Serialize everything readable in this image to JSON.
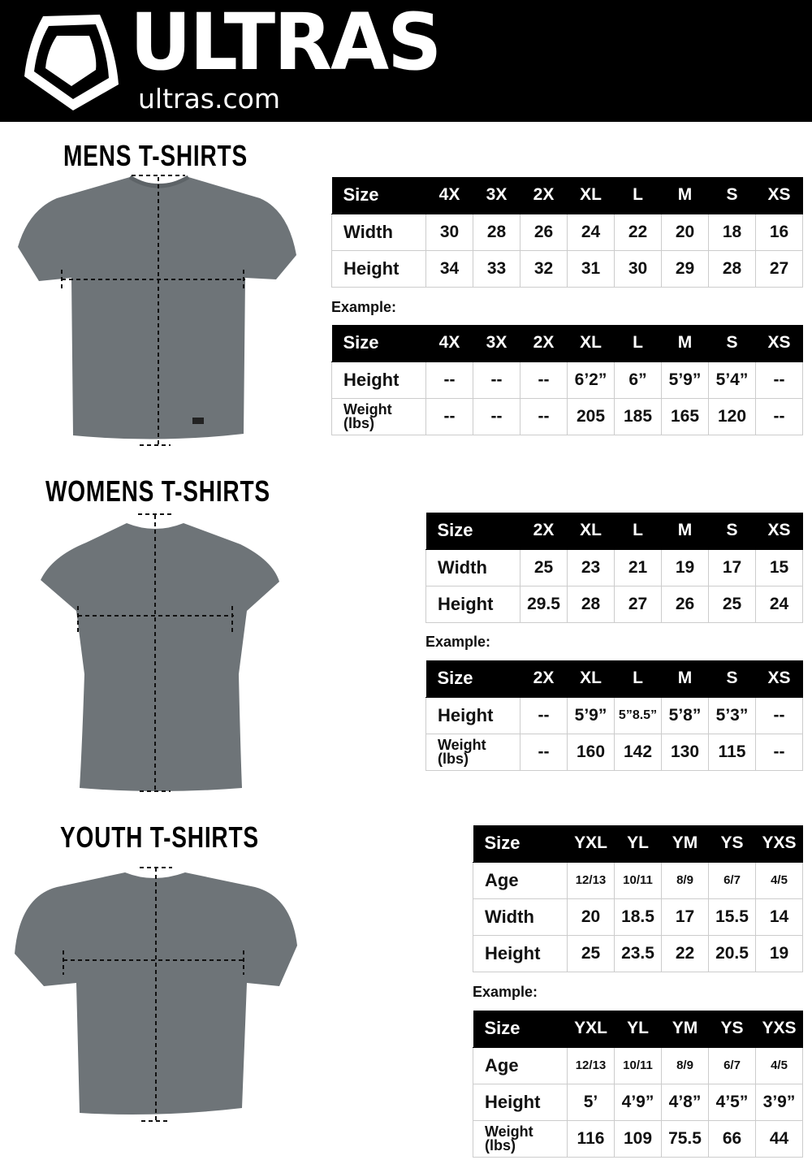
{
  "header": {
    "brand": "ULTRAS",
    "domain": "ultras.com",
    "logo": "ultras-shield-logo"
  },
  "mens": {
    "title": "MENS  T-SHIRTS",
    "example_label": "Example:",
    "sizes": {
      "headers": [
        "Size",
        "4X",
        "3X",
        "2X",
        "XL",
        "L",
        "M",
        "S",
        "XS"
      ],
      "rows": [
        [
          "Width",
          "30",
          "28",
          "26",
          "24",
          "22",
          "20",
          "18",
          "16"
        ],
        [
          "Height",
          "34",
          "33",
          "32",
          "31",
          "30",
          "29",
          "28",
          "27"
        ]
      ]
    },
    "example": {
      "headers": [
        "Size",
        "4X",
        "3X",
        "2X",
        "XL",
        "L",
        "M",
        "S",
        "XS"
      ],
      "rows": [
        [
          "Height",
          "--",
          "--",
          "--",
          "6’2”",
          "6”",
          "5’9”",
          "5’4”",
          "--"
        ],
        [
          "Weight (lbs)",
          "--",
          "--",
          "--",
          "205",
          "185",
          "165",
          "120",
          "--"
        ]
      ]
    }
  },
  "womens": {
    "title": "WOMENS  T-SHIRTS",
    "example_label": "Example:",
    "sizes": {
      "headers": [
        "Size",
        "2X",
        "XL",
        "L",
        "M",
        "S",
        "XS"
      ],
      "rows": [
        [
          "Width",
          "25",
          "23",
          "21",
          "19",
          "17",
          "15"
        ],
        [
          "Height",
          "29.5",
          "28",
          "27",
          "26",
          "25",
          "24"
        ]
      ]
    },
    "example": {
      "headers": [
        "Size",
        "2X",
        "XL",
        "L",
        "M",
        "S",
        "XS"
      ],
      "rows": [
        [
          "Height",
          "--",
          "5’9”",
          "5”8.5”",
          "5’8”",
          "5’3”",
          "--"
        ],
        [
          "Weight (lbs)",
          "--",
          "160",
          "142",
          "130",
          "115",
          "--"
        ]
      ]
    }
  },
  "youth": {
    "title": "YOUTH  T-SHIRTS",
    "example_label": "Example:",
    "sizes": {
      "headers": [
        "Size",
        "YXL",
        "YL",
        "YM",
        "YS",
        "YXS"
      ],
      "rows": [
        [
          "Age",
          "12/13",
          "10/11",
          "8/9",
          "6/7",
          "4/5"
        ],
        [
          "Width",
          "20",
          "18.5",
          "17",
          "15.5",
          "14"
        ],
        [
          "Height",
          "25",
          "23.5",
          "22",
          "20.5",
          "19"
        ]
      ]
    },
    "example": {
      "headers": [
        "Size",
        "YXL",
        "YL",
        "YM",
        "YS",
        "YXS"
      ],
      "rows": [
        [
          "Age",
          "12/13",
          "10/11",
          "8/9",
          "6/7",
          "4/5"
        ],
        [
          "Height",
          "5’",
          "4’9”",
          "4’8”",
          "4’5”",
          "3’9”"
        ],
        [
          "Weight (lbs)",
          "116",
          "109",
          "75.5",
          "66",
          "44"
        ]
      ]
    }
  },
  "colors": {
    "shirt": "#6e7478",
    "header_bg": "#000000"
  }
}
